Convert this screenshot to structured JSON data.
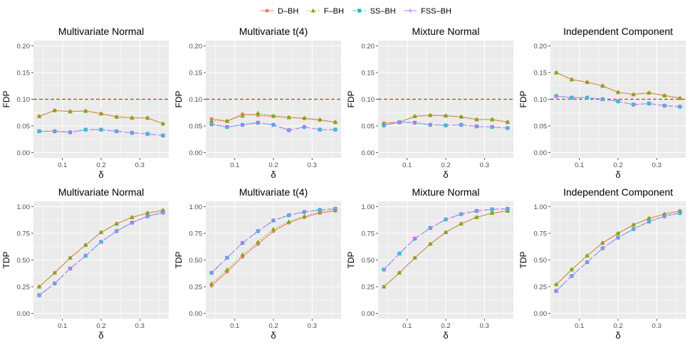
{
  "legend": {
    "entries": [
      {
        "name": "D–BH",
        "color": "#F8766D",
        "shape": "circle",
        "dash": "solid"
      },
      {
        "name": "F–BH",
        "color": "#7CAE00",
        "shape": "triangle",
        "dash": "dotted"
      },
      {
        "name": "SS–BH",
        "color": "#00BFC4",
        "shape": "square",
        "dash": "dashed"
      },
      {
        "name": "FSS–BH",
        "color": "#C77CFF",
        "shape": "cross",
        "dash": "longdash"
      }
    ]
  },
  "colors": {
    "panel_bg": "#EBEBEB",
    "grid": "#FFFFFF",
    "reference_line": "#C0392B",
    "axis_text": "#4D4D4D"
  },
  "chart_data": [
    {
      "type": "line",
      "title": "Multivariate Normal",
      "xlabel": "δ",
      "ylabel": "FDP",
      "x": [
        0.04,
        0.08,
        0.12,
        0.16,
        0.2,
        0.24,
        0.28,
        0.32,
        0.36
      ],
      "xlim": [
        0.025,
        0.375
      ],
      "ylim": [
        -0.01,
        0.21
      ],
      "xticks": [
        0.1,
        0.2,
        0.3
      ],
      "xtick_labels": [
        "0.1",
        "0.2",
        "0.3"
      ],
      "yticks": [
        0,
        0.05,
        0.1,
        0.15,
        0.2
      ],
      "ytick_labels": [
        "0.00",
        "0.05",
        "0.10",
        "0.15",
        "0.20"
      ],
      "hline": 0.1,
      "grid": true,
      "series": [
        {
          "name": "D–BH",
          "values": [
            0.068,
            0.079,
            0.077,
            0.078,
            0.073,
            0.067,
            0.065,
            0.065,
            0.054
          ]
        },
        {
          "name": "F–BH",
          "values": [
            0.068,
            0.079,
            0.077,
            0.078,
            0.073,
            0.067,
            0.065,
            0.065,
            0.054
          ]
        },
        {
          "name": "SS–BH",
          "values": [
            0.04,
            0.04,
            0.038,
            0.043,
            0.043,
            0.04,
            0.037,
            0.035,
            0.032
          ]
        },
        {
          "name": "FSS–BH",
          "values": [
            0.04,
            0.04,
            0.038,
            0.043,
            0.043,
            0.04,
            0.037,
            0.035,
            0.032
          ]
        }
      ]
    },
    {
      "type": "line",
      "title": "Multivariate t(4)",
      "xlabel": "δ",
      "ylabel": "FDP",
      "x": [
        0.04,
        0.08,
        0.12,
        0.16,
        0.2,
        0.24,
        0.28,
        0.32,
        0.36
      ],
      "xlim": [
        0.025,
        0.375
      ],
      "ylim": [
        -0.01,
        0.21
      ],
      "xticks": [
        0.1,
        0.2,
        0.3
      ],
      "xtick_labels": [
        "0.1",
        "0.2",
        "0.3"
      ],
      "yticks": [
        0,
        0.05,
        0.1,
        0.15,
        0.2
      ],
      "ytick_labels": [
        "0.00",
        "0.05",
        "0.10",
        "0.15",
        "0.20"
      ],
      "hline": 0.1,
      "grid": true,
      "series": [
        {
          "name": "D–BH",
          "values": [
            0.063,
            0.059,
            0.072,
            0.07,
            0.068,
            0.066,
            0.064,
            0.061,
            0.057
          ]
        },
        {
          "name": "F–BH",
          "values": [
            0.06,
            0.059,
            0.069,
            0.074,
            0.069,
            0.066,
            0.065,
            0.062,
            0.057
          ]
        },
        {
          "name": "SS–BH",
          "values": [
            0.053,
            0.048,
            0.052,
            0.056,
            0.052,
            0.042,
            0.048,
            0.043,
            0.043
          ]
        },
        {
          "name": "FSS–BH",
          "values": [
            0.053,
            0.048,
            0.052,
            0.056,
            0.052,
            0.042,
            0.048,
            0.043,
            0.043
          ]
        }
      ]
    },
    {
      "type": "line",
      "title": "Mixture Normal",
      "xlabel": "δ",
      "ylabel": "FDP",
      "x": [
        0.04,
        0.08,
        0.12,
        0.16,
        0.2,
        0.24,
        0.28,
        0.32,
        0.36
      ],
      "xlim": [
        0.025,
        0.375
      ],
      "ylim": [
        -0.01,
        0.21
      ],
      "xticks": [
        0.1,
        0.2,
        0.3
      ],
      "xtick_labels": [
        "0.1",
        "0.2",
        "0.3"
      ],
      "yticks": [
        0,
        0.05,
        0.1,
        0.15,
        0.2
      ],
      "ytick_labels": [
        "0.00",
        "0.05",
        "0.10",
        "0.15",
        "0.20"
      ],
      "hline": 0.1,
      "grid": true,
      "series": [
        {
          "name": "D–BH",
          "values": [
            0.055,
            0.057,
            0.068,
            0.07,
            0.069,
            0.067,
            0.062,
            0.062,
            0.057
          ]
        },
        {
          "name": "F–BH",
          "values": [
            0.055,
            0.057,
            0.068,
            0.07,
            0.069,
            0.067,
            0.062,
            0.062,
            0.057
          ]
        },
        {
          "name": "SS–BH",
          "values": [
            0.051,
            0.057,
            0.056,
            0.052,
            0.051,
            0.052,
            0.049,
            0.048,
            0.046
          ]
        },
        {
          "name": "FSS–BH",
          "values": [
            0.051,
            0.057,
            0.056,
            0.052,
            0.051,
            0.052,
            0.049,
            0.048,
            0.046
          ]
        }
      ]
    },
    {
      "type": "line",
      "title": "Independent Component",
      "xlabel": "δ",
      "ylabel": "FDP",
      "x": [
        0.04,
        0.08,
        0.12,
        0.16,
        0.2,
        0.24,
        0.28,
        0.32,
        0.36
      ],
      "xlim": [
        0.025,
        0.375
      ],
      "ylim": [
        -0.01,
        0.21
      ],
      "xticks": [
        0.1,
        0.2,
        0.3
      ],
      "xtick_labels": [
        "0.1",
        "0.2",
        "0.3"
      ],
      "yticks": [
        0,
        0.05,
        0.1,
        0.15,
        0.2
      ],
      "ytick_labels": [
        "0.00",
        "0.05",
        "0.10",
        "0.15",
        "0.20"
      ],
      "hline": 0.1,
      "grid": true,
      "series": [
        {
          "name": "D–BH",
          "values": [
            0.15,
            0.137,
            0.132,
            0.125,
            0.113,
            0.109,
            0.112,
            0.107,
            0.102
          ]
        },
        {
          "name": "F–BH",
          "values": [
            0.15,
            0.137,
            0.132,
            0.125,
            0.113,
            0.109,
            0.112,
            0.107,
            0.102
          ]
        },
        {
          "name": "SS–BH",
          "values": [
            0.106,
            0.103,
            0.103,
            0.1,
            0.096,
            0.09,
            0.092,
            0.088,
            0.086
          ]
        },
        {
          "name": "FSS–BH",
          "values": [
            0.106,
            0.103,
            0.103,
            0.1,
            0.096,
            0.09,
            0.092,
            0.088,
            0.086
          ]
        }
      ]
    },
    {
      "type": "line",
      "title": "Multivariate Normal",
      "xlabel": "δ",
      "ylabel": "TDP",
      "x": [
        0.04,
        0.08,
        0.12,
        0.16,
        0.2,
        0.24,
        0.28,
        0.32,
        0.36
      ],
      "xlim": [
        0.025,
        0.375
      ],
      "ylim": [
        -0.05,
        1.05
      ],
      "xticks": [
        0.1,
        0.2,
        0.3
      ],
      "xtick_labels": [
        "0.1",
        "0.2",
        "0.3"
      ],
      "yticks": [
        0,
        0.25,
        0.5,
        0.75,
        1
      ],
      "ytick_labels": [
        "0.00",
        "0.25",
        "0.50",
        "0.75",
        "1.00"
      ],
      "grid": true,
      "series": [
        {
          "name": "D–BH",
          "values": [
            0.25,
            0.38,
            0.52,
            0.64,
            0.76,
            0.84,
            0.9,
            0.94,
            0.965
          ]
        },
        {
          "name": "F–BH",
          "values": [
            0.25,
            0.38,
            0.52,
            0.64,
            0.76,
            0.84,
            0.9,
            0.94,
            0.965
          ]
        },
        {
          "name": "SS–BH",
          "values": [
            0.17,
            0.28,
            0.42,
            0.54,
            0.67,
            0.77,
            0.85,
            0.91,
            0.945
          ]
        },
        {
          "name": "FSS–BH",
          "values": [
            0.17,
            0.28,
            0.42,
            0.54,
            0.67,
            0.77,
            0.85,
            0.91,
            0.945
          ]
        }
      ]
    },
    {
      "type": "line",
      "title": "Multivariate t(4)",
      "xlabel": "δ",
      "ylabel": "TDP",
      "x": [
        0.04,
        0.08,
        0.12,
        0.16,
        0.2,
        0.24,
        0.28,
        0.32,
        0.36
      ],
      "xlim": [
        0.025,
        0.375
      ],
      "ylim": [
        -0.05,
        1.05
      ],
      "xticks": [
        0.1,
        0.2,
        0.3
      ],
      "xtick_labels": [
        "0.1",
        "0.2",
        "0.3"
      ],
      "yticks": [
        0,
        0.25,
        0.5,
        0.75,
        1
      ],
      "ytick_labels": [
        "0.00",
        "0.25",
        "0.50",
        "0.75",
        "1.00"
      ],
      "grid": true,
      "series": [
        {
          "name": "D–BH",
          "values": [
            0.26,
            0.39,
            0.53,
            0.65,
            0.77,
            0.85,
            0.9,
            0.94,
            0.96
          ]
        },
        {
          "name": "F–BH",
          "values": [
            0.28,
            0.41,
            0.55,
            0.67,
            0.79,
            0.86,
            0.91,
            0.95,
            0.97
          ]
        },
        {
          "name": "SS–BH",
          "values": [
            0.38,
            0.52,
            0.66,
            0.77,
            0.87,
            0.92,
            0.95,
            0.97,
            0.98
          ]
        },
        {
          "name": "FSS–BH",
          "values": [
            0.38,
            0.52,
            0.66,
            0.77,
            0.87,
            0.92,
            0.95,
            0.97,
            0.98
          ]
        }
      ]
    },
    {
      "type": "line",
      "title": "Mixture Normal",
      "xlabel": "δ",
      "ylabel": "TDP",
      "x": [
        0.04,
        0.08,
        0.12,
        0.16,
        0.2,
        0.24,
        0.28,
        0.32,
        0.36
      ],
      "xlim": [
        0.025,
        0.375
      ],
      "ylim": [
        -0.05,
        1.05
      ],
      "xticks": [
        0.1,
        0.2,
        0.3
      ],
      "xtick_labels": [
        "0.1",
        "0.2",
        "0.3"
      ],
      "yticks": [
        0,
        0.25,
        0.5,
        0.75,
        1
      ],
      "ytick_labels": [
        "0.00",
        "0.25",
        "0.50",
        "0.75",
        "1.00"
      ],
      "grid": true,
      "series": [
        {
          "name": "D–BH",
          "values": [
            0.25,
            0.38,
            0.52,
            0.65,
            0.76,
            0.84,
            0.9,
            0.94,
            0.96
          ]
        },
        {
          "name": "F–BH",
          "values": [
            0.25,
            0.38,
            0.52,
            0.65,
            0.76,
            0.84,
            0.9,
            0.94,
            0.96
          ]
        },
        {
          "name": "SS–BH",
          "values": [
            0.41,
            0.56,
            0.7,
            0.8,
            0.88,
            0.93,
            0.96,
            0.975,
            0.98
          ]
        },
        {
          "name": "FSS–BH",
          "values": [
            0.41,
            0.56,
            0.7,
            0.8,
            0.88,
            0.93,
            0.96,
            0.975,
            0.98
          ]
        }
      ]
    },
    {
      "type": "line",
      "title": "Independent Component",
      "xlabel": "δ",
      "ylabel": "TDP",
      "x": [
        0.04,
        0.08,
        0.12,
        0.16,
        0.2,
        0.24,
        0.28,
        0.32,
        0.36
      ],
      "xlim": [
        0.025,
        0.375
      ],
      "ylim": [
        -0.05,
        1.05
      ],
      "xticks": [
        0.1,
        0.2,
        0.3
      ],
      "xtick_labels": [
        "0.1",
        "0.2",
        "0.3"
      ],
      "yticks": [
        0,
        0.25,
        0.5,
        0.75,
        1
      ],
      "ytick_labels": [
        "0.00",
        "0.25",
        "0.50",
        "0.75",
        "1.00"
      ],
      "grid": true,
      "series": [
        {
          "name": "D–BH",
          "values": [
            0.27,
            0.41,
            0.54,
            0.66,
            0.75,
            0.83,
            0.89,
            0.93,
            0.96
          ]
        },
        {
          "name": "F–BH",
          "values": [
            0.27,
            0.41,
            0.54,
            0.66,
            0.75,
            0.83,
            0.89,
            0.93,
            0.96
          ]
        },
        {
          "name": "SS–BH",
          "values": [
            0.21,
            0.35,
            0.48,
            0.61,
            0.71,
            0.79,
            0.86,
            0.91,
            0.94
          ]
        },
        {
          "name": "FSS–BH",
          "values": [
            0.21,
            0.35,
            0.48,
            0.61,
            0.71,
            0.79,
            0.86,
            0.91,
            0.94
          ]
        }
      ]
    }
  ]
}
